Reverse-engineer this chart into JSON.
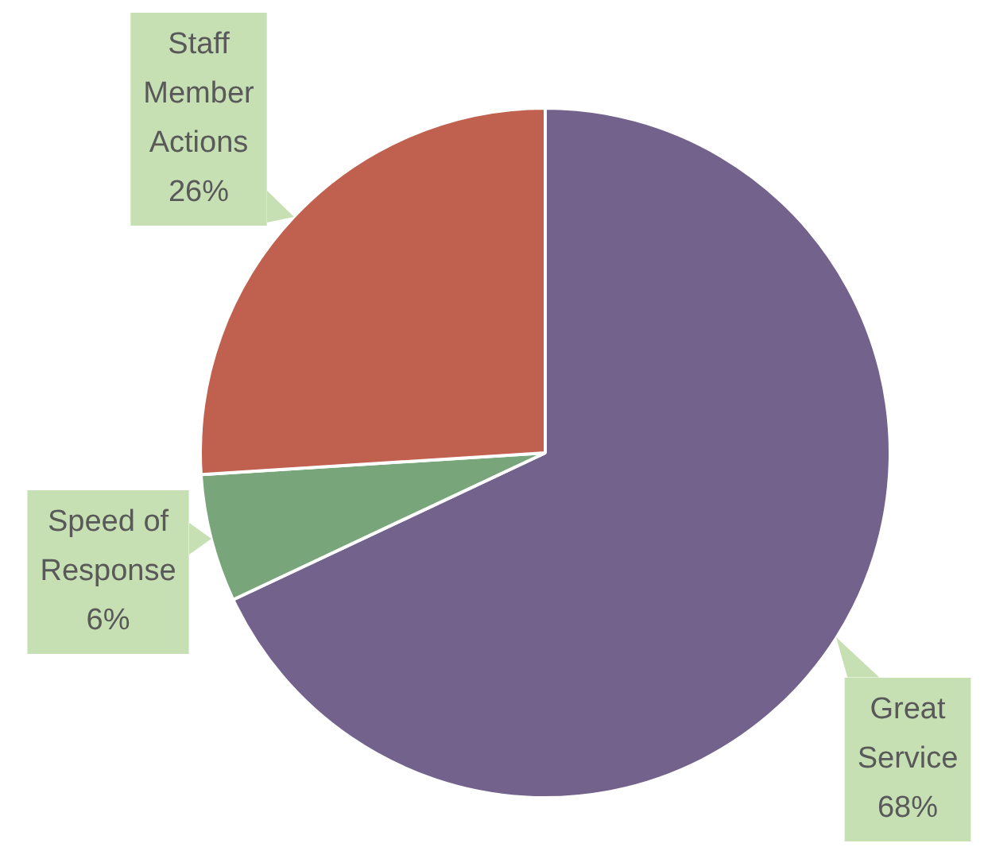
{
  "chart_data": {
    "type": "pie",
    "categories": [
      "Great Service",
      "Speed of Response",
      "Staff Member Actions"
    ],
    "values": [
      68,
      6,
      26
    ],
    "colors": [
      "#72628c",
      "#78a57a",
      "#c0604f"
    ],
    "value_labels": [
      "68%",
      "6%",
      "26%"
    ],
    "legend": false
  }
}
